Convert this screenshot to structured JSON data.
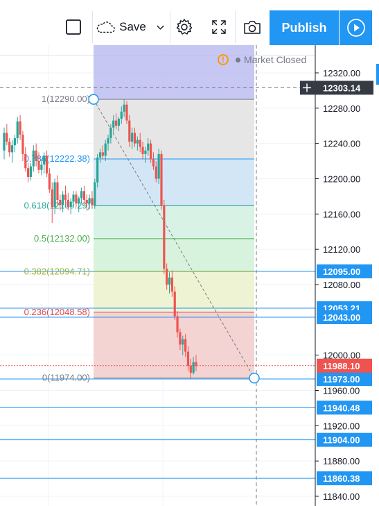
{
  "toolbar": {
    "save_label": "Save",
    "publish_label": "Publish",
    "icons": [
      "square-icon",
      "cloud-icon",
      "chevron-down-icon",
      "gear-icon",
      "fullscreen-icon",
      "camera-icon",
      "play-icon"
    ]
  },
  "status": {
    "market_text": "Market Closed"
  },
  "colors": {
    "accent": "#2196f3",
    "up": "#26a69a",
    "down": "#ef5350",
    "price_badge": "#ef5350",
    "level_line": "#2196f3"
  },
  "chart_data": {
    "type": "candlestick",
    "y_axis": {
      "min": 11830,
      "max": 12345,
      "ticks": [
        "12320.00",
        "12280.00",
        "12240.00",
        "12200.00",
        "12160.00",
        "12120.00",
        "12080.00",
        "12000.00",
        "11960.00",
        "11920.00",
        "11880.00",
        "11840.00"
      ]
    },
    "crosshair_price": "12303.14",
    "current_price": "11988.10",
    "horizontal_levels": [
      {
        "value": 12095.0,
        "label": "12095.00"
      },
      {
        "value": 12053.21,
        "label": "12053.21"
      },
      {
        "value": 12043.0,
        "label": "12043.00"
      },
      {
        "value": 11973.0,
        "label": "11973.00"
      },
      {
        "value": 11940.48,
        "label": "11940.48"
      },
      {
        "value": 11904.0,
        "label": "11904.00"
      },
      {
        "value": 11860.38,
        "label": "11860.38"
      }
    ],
    "fibonacci": [
      {
        "ratio": "1",
        "value": 12290.0,
        "label": "1(12290.00)",
        "color": "#787b86"
      },
      {
        "ratio": "0.786",
        "value": 12222.38,
        "label": "0.786(12222.38)",
        "color": "#2196f3"
      },
      {
        "ratio": "0.618",
        "value": 12169.29,
        "label": "0.618(12169.29)",
        "color": "#26a69a"
      },
      {
        "ratio": "0.5",
        "value": 12132.0,
        "label": "0.5(12132.00)",
        "color": "#4caf50"
      },
      {
        "ratio": "0.382",
        "value": 12094.71,
        "label": "0.382(12094.71)",
        "color": "#9bb13b"
      },
      {
        "ratio": "0.236",
        "value": 12048.58,
        "label": "0.236(12048.58)",
        "color": "#e04848"
      },
      {
        "ratio": "0",
        "value": 11974.0,
        "label": "0(11974.00)",
        "color": "#787b86"
      }
    ],
    "candles": [
      [
        12232,
        12258,
        12222,
        12252
      ],
      [
        12252,
        12262,
        12238,
        12242
      ],
      [
        12242,
        12246,
        12225,
        12230
      ],
      [
        12230,
        12244,
        12218,
        12238
      ],
      [
        12238,
        12250,
        12230,
        12246
      ],
      [
        12246,
        12270,
        12240,
        12265
      ],
      [
        12265,
        12272,
        12244,
        12250
      ],
      [
        12250,
        12254,
        12220,
        12228
      ],
      [
        12228,
        12236,
        12208,
        12212
      ],
      [
        12212,
        12218,
        12196,
        12202
      ],
      [
        12202,
        12218,
        12198,
        12214
      ],
      [
        12214,
        12238,
        12208,
        12232
      ],
      [
        12232,
        12240,
        12214,
        12220
      ],
      [
        12220,
        12230,
        12206,
        12210
      ],
      [
        12210,
        12222,
        12204,
        12216
      ],
      [
        12216,
        12230,
        12206,
        12226
      ],
      [
        12226,
        12232,
        12202,
        12206
      ],
      [
        12206,
        12212,
        12184,
        12188
      ],
      [
        12188,
        12196,
        12150,
        12168
      ],
      [
        12168,
        12200,
        12160,
        12196
      ],
      [
        12196,
        12204,
        12170,
        12176
      ],
      [
        12176,
        12182,
        12164,
        12170
      ],
      [
        12170,
        12186,
        12162,
        12182
      ],
      [
        12182,
        12192,
        12172,
        12176
      ],
      [
        12176,
        12184,
        12164,
        12168
      ],
      [
        12168,
        12178,
        12160,
        12174
      ],
      [
        12174,
        12186,
        12170,
        12182
      ],
      [
        12182,
        12186,
        12168,
        12172
      ],
      [
        12172,
        12180,
        12162,
        12178
      ],
      [
        12178,
        12190,
        12172,
        12186
      ],
      [
        12186,
        12192,
        12170,
        12176
      ],
      [
        12176,
        12182,
        12164,
        12172
      ],
      [
        12172,
        12182,
        12166,
        12178
      ],
      [
        12178,
        12186,
        12166,
        12170
      ],
      [
        12170,
        12200,
        12166,
        12196
      ],
      [
        12196,
        12228,
        12190,
        12224
      ],
      [
        12224,
        12234,
        12218,
        12230
      ],
      [
        12230,
        12238,
        12222,
        12226
      ],
      [
        12226,
        12244,
        12220,
        12240
      ],
      [
        12240,
        12250,
        12232,
        12246
      ],
      [
        12246,
        12262,
        12240,
        12258
      ],
      [
        12258,
        12272,
        12252,
        12266
      ],
      [
        12266,
        12274,
        12256,
        12260
      ],
      [
        12260,
        12270,
        12254,
        12268
      ],
      [
        12268,
        12282,
        12262,
        12276
      ],
      [
        12276,
        12290,
        12270,
        12284
      ],
      [
        12284,
        12288,
        12262,
        12266
      ],
      [
        12266,
        12272,
        12236,
        12242
      ],
      [
        12242,
        12258,
        12234,
        12252
      ],
      [
        12252,
        12258,
        12236,
        12240
      ],
      [
        12240,
        12248,
        12232,
        12244
      ],
      [
        12244,
        12252,
        12230,
        12236
      ],
      [
        12236,
        12242,
        12222,
        12228
      ],
      [
        12228,
        12236,
        12218,
        12232
      ],
      [
        12232,
        12246,
        12226,
        12240
      ],
      [
        12240,
        12244,
        12218,
        12222
      ],
      [
        12222,
        12230,
        12210,
        12214
      ],
      [
        12214,
        12220,
        12196,
        12200
      ],
      [
        12200,
        12234,
        12194,
        12228
      ],
      [
        12228,
        12232,
        12165,
        12170
      ],
      [
        12170,
        12176,
        12092,
        12098
      ],
      [
        12098,
        12104,
        12074,
        12080
      ],
      [
        12080,
        12094,
        12070,
        12088
      ],
      [
        12088,
        12096,
        12066,
        12072
      ],
      [
        12072,
        12078,
        12040,
        12044
      ],
      [
        12044,
        12050,
        12020,
        12026
      ],
      [
        12026,
        12030,
        12006,
        12012
      ],
      [
        12012,
        12022,
        12000,
        12018
      ],
      [
        12018,
        12024,
        11998,
        12004
      ],
      [
        12004,
        12010,
        11982,
        11988
      ],
      [
        11988,
        11996,
        11974,
        11980
      ],
      [
        11980,
        11998,
        11978,
        11992
      ],
      [
        11992,
        12000,
        11982,
        11988
      ]
    ]
  }
}
